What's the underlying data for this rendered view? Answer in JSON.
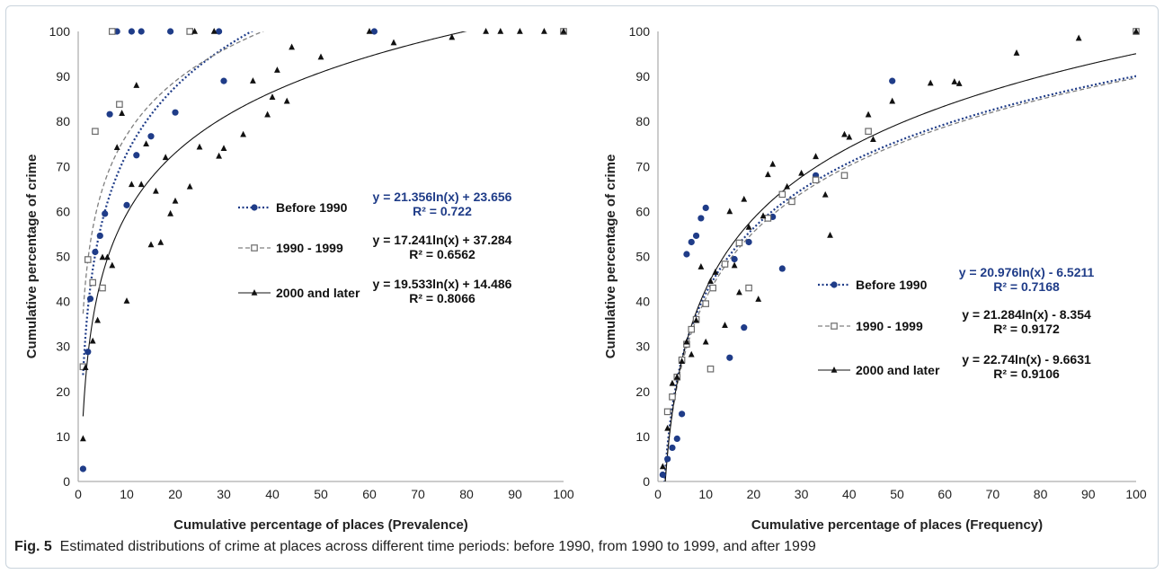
{
  "caption": {
    "label": "Fig. 5",
    "text": "Estimated distributions of crime at places across different time periods: before 1990, from 1990 to 1999, and after 1999"
  },
  "colors": {
    "before1990": "#1f3c88",
    "y1990_1999": "#808080",
    "after2000": "#111111",
    "eq_blue": "#1f3c88"
  },
  "chart_data": [
    {
      "type": "scatter",
      "title": "",
      "xlabel": "Cumulative percentage of places  (Prevalence)",
      "ylabel": "Cumulative percentage of crime",
      "xlim": [
        0,
        100
      ],
      "ylim": [
        0,
        100
      ],
      "xticks": [
        "0",
        "10",
        "20",
        "30",
        "40",
        "50",
        "60",
        "70",
        "80",
        "90",
        "100"
      ],
      "yticks": [
        "0",
        "10",
        "20",
        "30",
        "40",
        "50",
        "60",
        "70",
        "80",
        "90",
        "100"
      ],
      "grid": false,
      "legend_position": "center-right",
      "series": [
        {
          "name": "Before 1990",
          "marker": "circle",
          "trend": {
            "a": 21.356,
            "b": 23.656
          },
          "equation": "y = 21.356ln(x) + 23.656",
          "r2": "R² = 0.722",
          "points": [
            [
              1,
              2.8
            ],
            [
              2,
              28.8
            ],
            [
              2.5,
              40.6
            ],
            [
              3.5,
              51
            ],
            [
              4.5,
              54.6
            ],
            [
              5.5,
              59.5
            ],
            [
              6.5,
              81.6
            ],
            [
              8,
              100
            ],
            [
              10,
              61.4
            ],
            [
              11,
              100
            ],
            [
              12,
              72.5
            ],
            [
              13,
              100
            ],
            [
              15,
              76.7
            ],
            [
              19,
              100
            ],
            [
              20,
              82
            ],
            [
              29,
              100
            ],
            [
              30,
              89
            ],
            [
              61,
              100
            ],
            [
              100,
              100
            ]
          ]
        },
        {
          "name": "1990 - 1999",
          "marker": "square",
          "trend": {
            "a": 17.241,
            "b": 37.284
          },
          "equation": "y = 17.241ln(x) + 37.284",
          "r2": "R² = 0.6562",
          "points": [
            [
              1,
              25.5
            ],
            [
              2,
              49.3
            ],
            [
              3,
              44.2
            ],
            [
              3.5,
              77.8
            ],
            [
              5,
              43
            ],
            [
              7,
              100
            ],
            [
              8.5,
              83.8
            ],
            [
              23,
              100
            ],
            [
              100,
              100
            ]
          ]
        },
        {
          "name": "2000 and later",
          "marker": "triangle",
          "trend": {
            "a": 19.533,
            "b": 14.486
          },
          "equation": "y = 19.533ln(x) + 14.486",
          "r2": "R² = 0.8066",
          "points": [
            [
              1,
              9.5
            ],
            [
              1.5,
              25.3
            ],
            [
              3,
              31.2
            ],
            [
              4,
              35.8
            ],
            [
              5,
              49.8
            ],
            [
              6,
              49.8
            ],
            [
              7,
              48
            ],
            [
              8,
              74.2
            ],
            [
              9,
              81.8
            ],
            [
              10,
              40.1
            ],
            [
              11,
              66
            ],
            [
              12,
              88
            ],
            [
              13,
              66
            ],
            [
              14,
              75
            ],
            [
              15,
              52.6
            ],
            [
              16,
              64.5
            ],
            [
              17,
              53.1
            ],
            [
              18,
              72
            ],
            [
              19,
              59.5
            ],
            [
              20,
              62.3
            ],
            [
              23,
              65.5
            ],
            [
              24,
              100
            ],
            [
              25,
              74.3
            ],
            [
              28,
              100
            ],
            [
              29,
              72.3
            ],
            [
              30,
              74
            ],
            [
              34,
              77.1
            ],
            [
              36,
              89
            ],
            [
              39,
              81.5
            ],
            [
              40,
              85.4
            ],
            [
              41,
              91.4
            ],
            [
              43,
              84.5
            ],
            [
              44,
              96.5
            ],
            [
              50,
              94.3
            ],
            [
              60,
              100
            ],
            [
              65,
              97.5
            ],
            [
              77,
              98.7
            ],
            [
              84,
              100
            ],
            [
              87,
              100
            ],
            [
              91,
              100
            ],
            [
              96,
              100
            ],
            [
              100,
              100
            ]
          ]
        }
      ]
    },
    {
      "type": "scatter",
      "title": "",
      "xlabel": "Cumulative percentage of places (Frequency)",
      "ylabel": "Cumulative percentage of crime",
      "xlim": [
        0,
        100
      ],
      "ylim": [
        0,
        100
      ],
      "xticks": [
        "0",
        "10",
        "20",
        "30",
        "40",
        "50",
        "60",
        "70",
        "80",
        "90",
        "100"
      ],
      "yticks": [
        "0",
        "10",
        "20",
        "30",
        "40",
        "50",
        "60",
        "70",
        "80",
        "90",
        "100"
      ],
      "grid": false,
      "legend_position": "center-right",
      "series": [
        {
          "name": "Before 1990",
          "marker": "circle",
          "trend": {
            "a": 20.976,
            "b": -6.5211
          },
          "equation": "y = 20.976ln(x) - 6.5211",
          "r2": "R² = 0.7168",
          "points": [
            [
              1,
              1.5
            ],
            [
              2,
              5
            ],
            [
              3,
              7.5
            ],
            [
              4,
              9.5
            ],
            [
              5,
              15
            ],
            [
              6,
              50.5
            ],
            [
              7,
              53.2
            ],
            [
              8,
              54.6
            ],
            [
              9,
              58.5
            ],
            [
              10,
              60.8
            ],
            [
              15,
              27.5
            ],
            [
              16,
              49.4
            ],
            [
              18,
              34.2
            ],
            [
              19,
              53.2
            ],
            [
              24,
              58.8
            ],
            [
              26,
              47.3
            ],
            [
              33,
              68
            ],
            [
              49,
              89
            ],
            [
              100,
              100
            ]
          ]
        },
        {
          "name": "1990 - 1999",
          "marker": "square",
          "trend": {
            "a": 21.284,
            "b": -8.354
          },
          "equation": "y = 21.284ln(x) - 8.354",
          "r2": "R² = 0.9172",
          "points": [
            [
              2,
              15.5
            ],
            [
              3,
              18.8
            ],
            [
              4,
              23.2
            ],
            [
              5,
              27
            ],
            [
              6,
              30.5
            ],
            [
              7,
              33.8
            ],
            [
              8,
              36
            ],
            [
              10,
              39.5
            ],
            [
              11,
              25
            ],
            [
              11.5,
              43
            ],
            [
              14,
              48.3
            ],
            [
              17,
              53
            ],
            [
              19,
              43
            ],
            [
              23,
              58.5
            ],
            [
              26,
              63.8
            ],
            [
              28,
              62.2
            ],
            [
              33,
              67
            ],
            [
              39,
              68
            ],
            [
              44,
              77.8
            ],
            [
              100,
              100
            ]
          ]
        },
        {
          "name": "2000 and later",
          "marker": "triangle",
          "trend": {
            "a": 22.74,
            "b": -9.6631
          },
          "equation": "y = 22.74ln(x) - 9.6631",
          "r2": "R² = 0.9106",
          "points": [
            [
              1,
              3.3
            ],
            [
              2,
              11.8
            ],
            [
              3,
              21.8
            ],
            [
              4,
              23.2
            ],
            [
              5,
              26.7
            ],
            [
              6,
              31
            ],
            [
              7,
              28.2
            ],
            [
              8,
              35.8
            ],
            [
              9,
              47.7
            ],
            [
              10,
              31
            ],
            [
              11,
              44.5
            ],
            [
              12,
              46.5
            ],
            [
              14,
              34.7
            ],
            [
              15,
              60
            ],
            [
              16,
              48
            ],
            [
              17,
              42
            ],
            [
              18,
              62.7
            ],
            [
              19,
              56.5
            ],
            [
              21,
              40.5
            ],
            [
              22,
              59
            ],
            [
              23,
              68.2
            ],
            [
              24,
              70.5
            ],
            [
              27,
              65.5
            ],
            [
              30,
              68.5
            ],
            [
              33,
              72.2
            ],
            [
              35,
              63.7
            ],
            [
              36,
              54.7
            ],
            [
              39,
              77.1
            ],
            [
              40,
              76.5
            ],
            [
              44,
              81.5
            ],
            [
              45,
              76
            ],
            [
              49,
              84.5
            ],
            [
              57,
              88.5
            ],
            [
              62,
              88.8
            ],
            [
              63,
              88.4
            ],
            [
              75,
              95.2
            ],
            [
              88,
              98.5
            ],
            [
              100,
              100
            ]
          ]
        }
      ]
    }
  ]
}
